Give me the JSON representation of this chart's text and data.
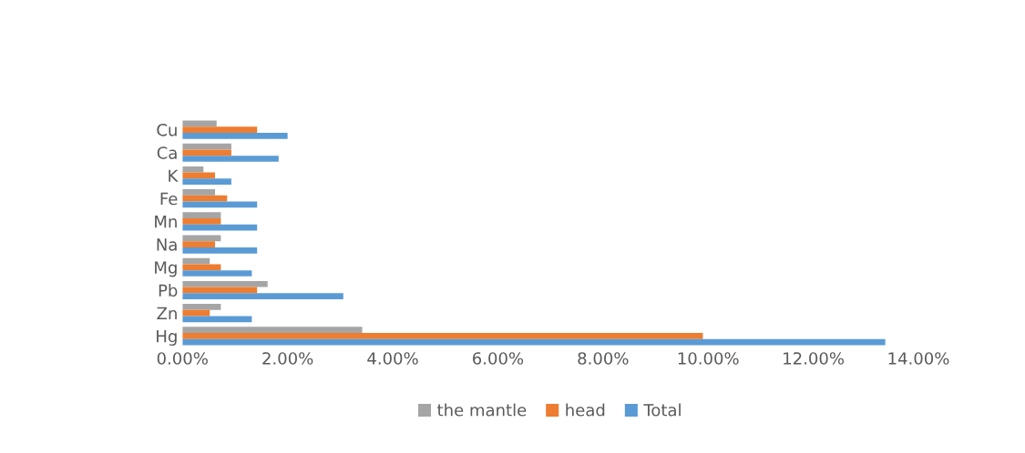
{
  "chart_data": {
    "type": "bar",
    "orientation": "horizontal",
    "categories": [
      "Cu",
      "Ca",
      "K",
      "Fe",
      "Mn",
      "Na",
      "Mg",
      "Pb",
      "Zn",
      "Hg"
    ],
    "series": [
      {
        "name": "the mantle",
        "color": "#a5a5a5",
        "values": [
          0.65,
          0.93,
          0.4,
          0.62,
          0.73,
          0.73,
          0.52,
          1.62,
          0.73,
          3.42
        ]
      },
      {
        "name": "head",
        "color": "#ed7d31",
        "values": [
          1.42,
          0.93,
          0.62,
          0.85,
          0.73,
          0.62,
          0.73,
          1.42,
          0.52,
          9.9
        ]
      },
      {
        "name": "Total",
        "color": "#5b9bd5",
        "values": [
          2.0,
          1.83,
          0.93,
          1.42,
          1.42,
          1.42,
          1.32,
          3.06,
          1.32,
          13.37
        ]
      }
    ],
    "xlim": [
      0,
      14
    ],
    "xticks": [
      {
        "value": 0,
        "label": "0.00%"
      },
      {
        "value": 2,
        "label": "2.00%"
      },
      {
        "value": 4,
        "label": "4.00%"
      },
      {
        "value": 6,
        "label": "6.00%"
      },
      {
        "value": 8,
        "label": "8.00%"
      },
      {
        "value": 10,
        "label": "10.00%"
      },
      {
        "value": 12,
        "label": "12.00%"
      },
      {
        "value": 14,
        "label": "14.00%"
      }
    ],
    "grid": false,
    "legend": "bottom"
  }
}
